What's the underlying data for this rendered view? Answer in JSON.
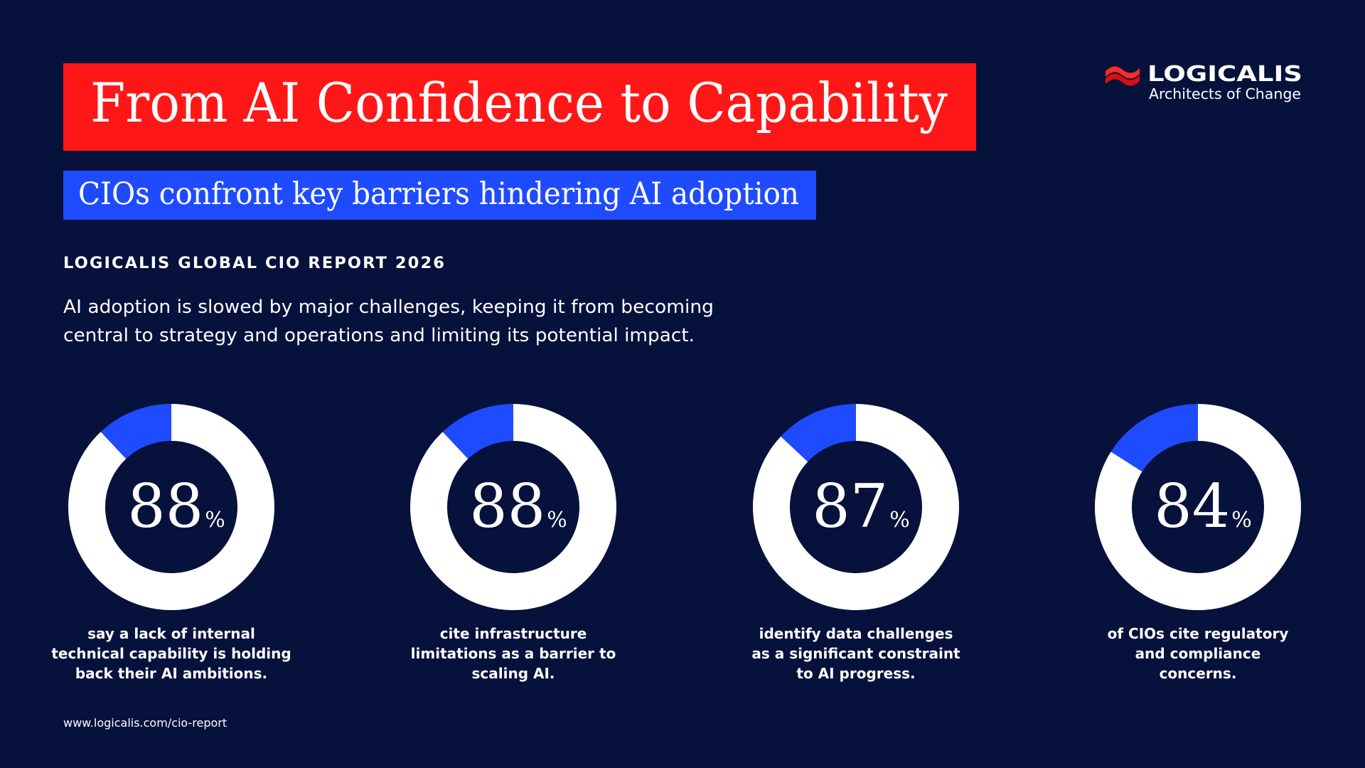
{
  "header": {
    "title": "From AI Confidence to Capability",
    "subtitle": "CIOs confront key barriers hindering AI adoption",
    "report_label": "LOGICALIS GLOBAL CIO REPORT 2026",
    "intro": [
      "AI adoption is slowed by major challenges, keeping it from becoming",
      "central to strategy and operations and limiting its potential impact."
    ]
  },
  "logo": {
    "name": "LOGICALIS",
    "tagline": "Architects of Change"
  },
  "chart_data": [
    {
      "type": "pie",
      "unit": "%",
      "values": [
        88,
        12
      ],
      "colors": [
        "#ffffff",
        "#1f4bff"
      ],
      "caption": [
        "say a lack of internal",
        "technical capability is holding",
        "back their AI ambitions."
      ]
    },
    {
      "type": "pie",
      "unit": "%",
      "values": [
        88,
        12
      ],
      "colors": [
        "#ffffff",
        "#1f4bff"
      ],
      "caption": [
        "cite infrastructure",
        "limitations as a barrier to",
        "scaling AI."
      ]
    },
    {
      "type": "pie",
      "unit": "%",
      "values": [
        87,
        13
      ],
      "colors": [
        "#ffffff",
        "#1f4bff"
      ],
      "caption": [
        "identify data challenges",
        "as a significant constraint",
        "to AI progress."
      ]
    },
    {
      "type": "pie",
      "unit": "%",
      "values": [
        84,
        16
      ],
      "colors": [
        "#ffffff",
        "#1f4bff"
      ],
      "caption": [
        "of CIOs cite regulatory",
        "and compliance",
        "concerns."
      ]
    }
  ],
  "footer": {
    "url": "www.logicalis.com/cio-report"
  }
}
